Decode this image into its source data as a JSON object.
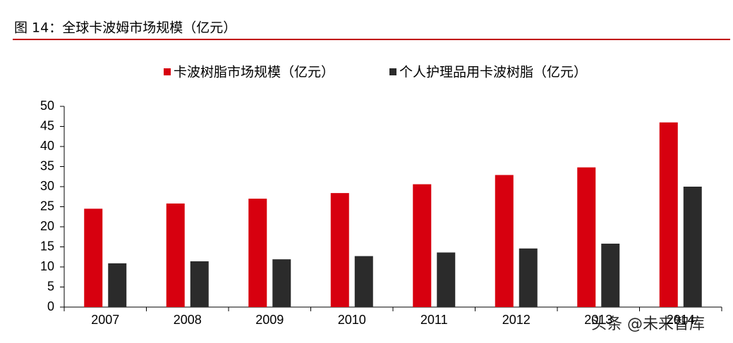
{
  "chart_data": {
    "type": "bar",
    "title": "图 14：全球卡波姆市场规模（亿元）",
    "categories": [
      "2007",
      "2008",
      "2009",
      "2010",
      "2011",
      "2012",
      "2013",
      "2014"
    ],
    "series": [
      {
        "name": "卡波树脂市场规模（亿元）",
        "color": "#d7000f",
        "values": [
          24.5,
          25.8,
          27,
          28.4,
          30.6,
          32.9,
          34.8,
          46
        ]
      },
      {
        "name": "个人护理品用卡波树脂（亿元）",
        "color": "#2b2b2b",
        "values": [
          10.9,
          11.4,
          11.9,
          12.7,
          13.6,
          14.6,
          15.8,
          30
        ]
      }
    ],
    "ylim": [
      0,
      50
    ],
    "yticks": [
      0,
      5,
      10,
      15,
      20,
      25,
      30,
      35,
      40,
      45,
      50
    ],
    "legend": "top",
    "watermark": "头条 @未来智库"
  }
}
